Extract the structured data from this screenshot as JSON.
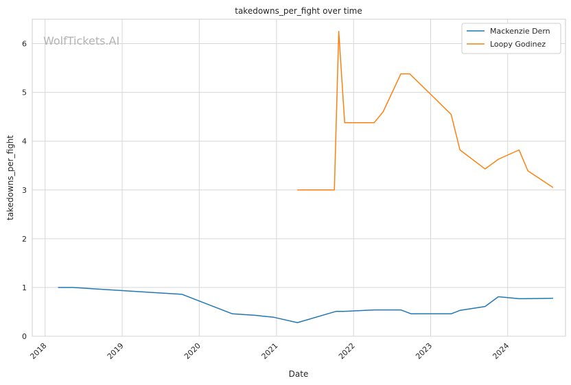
{
  "chart_data": {
    "type": "line",
    "title": "takedowns_per_fight over time",
    "xlabel": "Date",
    "ylabel": "takedowns_per_fight",
    "watermark": "WolfTickets.AI",
    "xlim": [
      "2017-11-01",
      "2024-10-01"
    ],
    "ylim": [
      0,
      6.5
    ],
    "x_ticks": [
      {
        "date": "2018-01-01",
        "label": "2018"
      },
      {
        "date": "2019-01-01",
        "label": "2019"
      },
      {
        "date": "2020-01-01",
        "label": "2020"
      },
      {
        "date": "2021-01-01",
        "label": "2021"
      },
      {
        "date": "2022-01-01",
        "label": "2022"
      },
      {
        "date": "2023-01-01",
        "label": "2023"
      },
      {
        "date": "2024-01-01",
        "label": "2024"
      }
    ],
    "y_ticks": [
      0,
      1,
      2,
      3,
      4,
      5,
      6
    ],
    "grid": true,
    "legend_position": "top-right",
    "series": [
      {
        "name": "Mackenzie Dern",
        "color": "#1f77b4",
        "points": [
          [
            "2018-03-03",
            1.0
          ],
          [
            "2018-05-12",
            1.0
          ],
          [
            "2019-10-12",
            0.86
          ],
          [
            "2020-06-06",
            0.46
          ],
          [
            "2020-09-19",
            0.43
          ],
          [
            "2020-12-19",
            0.39
          ],
          [
            "2021-04-10",
            0.28
          ],
          [
            "2021-10-09",
            0.51
          ],
          [
            "2021-11-13",
            0.51
          ],
          [
            "2022-04-09",
            0.54
          ],
          [
            "2022-08-13",
            0.54
          ],
          [
            "2022-10-01",
            0.46
          ],
          [
            "2023-04-08",
            0.46
          ],
          [
            "2023-05-20",
            0.53
          ],
          [
            "2023-09-16",
            0.61
          ],
          [
            "2023-11-18",
            0.81
          ],
          [
            "2024-02-24",
            0.77
          ],
          [
            "2024-08-03",
            0.78
          ]
        ]
      },
      {
        "name": "Loopy Godinez",
        "color": "#ff7f0e",
        "points": [
          [
            "2021-04-10",
            3.0
          ],
          [
            "2021-10-02",
            3.0
          ],
          [
            "2021-10-23",
            6.25
          ],
          [
            "2021-11-20",
            4.38
          ],
          [
            "2022-04-09",
            4.38
          ],
          [
            "2022-05-21",
            4.6
          ],
          [
            "2022-08-13",
            5.38
          ],
          [
            "2022-09-24",
            5.38
          ],
          [
            "2023-04-08",
            4.55
          ],
          [
            "2023-05-20",
            3.82
          ],
          [
            "2023-09-16",
            3.43
          ],
          [
            "2023-11-18",
            3.63
          ],
          [
            "2024-02-24",
            3.82
          ],
          [
            "2024-04-06",
            3.39
          ],
          [
            "2024-08-03",
            3.05
          ]
        ]
      }
    ]
  }
}
